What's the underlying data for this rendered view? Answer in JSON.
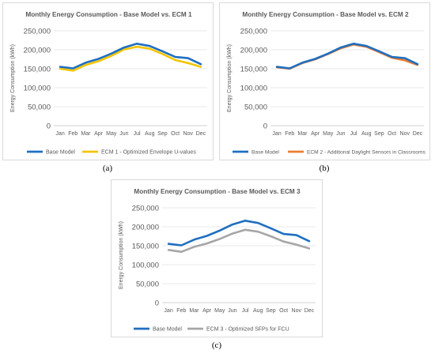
{
  "chart_data": [
    {
      "type": "line",
      "title": "Monthly Energy Consumption - Base Model vs. ECM 1",
      "xlabel": "",
      "ylabel": "Energy Consumption (kWh)",
      "ylim": [
        0,
        250000
      ],
      "yticks": [
        "0",
        "50,000",
        "100,000",
        "150,000",
        "200,000",
        "250,000"
      ],
      "categories": [
        "Jan",
        "Feb",
        "Mar",
        "Apr",
        "May",
        "Jun",
        "Jul",
        "Aug",
        "Sep",
        "Oct",
        "Nov",
        "Dec"
      ],
      "grid": true,
      "legend": "bottom",
      "series": [
        {
          "name": "Base Model",
          "color": "#1f6fc0",
          "values": [
            155000,
            151000,
            166000,
            176000,
            190000,
            206000,
            216000,
            210000,
            196000,
            181000,
            178000,
            162000
          ]
        },
        {
          "name": "ECM 1 - Optimized Envelope U-values",
          "color": "#f2c500",
          "values": [
            150000,
            145000,
            160000,
            170000,
            184000,
            201000,
            208000,
            203000,
            189000,
            173000,
            165000,
            155000
          ]
        }
      ]
    },
    {
      "type": "line",
      "title": "Monthly Energy Consumption - Base Model vs. ECM 2",
      "xlabel": "",
      "ylabel": "Energy Consumption (kWh)",
      "ylim": [
        0,
        250000
      ],
      "yticks": [
        "0",
        "50,000",
        "100,000",
        "150,000",
        "200,000",
        "250,000"
      ],
      "categories": [
        "Jan",
        "Feb",
        "Mar",
        "Apr",
        "May",
        "Jun",
        "Jul",
        "Aug",
        "Sep",
        "Oct",
        "Nov",
        "Dec"
      ],
      "grid": true,
      "legend": "bottom",
      "series": [
        {
          "name": "Base Model",
          "color": "#1f6fc0",
          "values": [
            155000,
            151000,
            166000,
            176000,
            190000,
            206000,
            216000,
            210000,
            196000,
            181000,
            178000,
            162000
          ]
        },
        {
          "name": "ECM 2 - Additional Daylight Sensors in Classrooms",
          "color": "#ed7d31",
          "values": [
            154000,
            150000,
            165000,
            175000,
            189000,
            204000,
            214000,
            208000,
            194000,
            179000,
            172000,
            160000
          ]
        }
      ]
    },
    {
      "type": "line",
      "title": "Monthly Energy Consumption - Base Model vs. ECM 3",
      "xlabel": "",
      "ylabel": "Energy Consumption (kWh)",
      "ylim": [
        0,
        250000
      ],
      "yticks": [
        "0",
        "50,000",
        "100,000",
        "150,000",
        "200,000",
        "250,000"
      ],
      "categories": [
        "Jan",
        "Feb",
        "Mar",
        "Apr",
        "May",
        "Jun",
        "Jul",
        "Aug",
        "Sep",
        "Oct",
        "Nov",
        "Dec"
      ],
      "grid": true,
      "legend": "bottom",
      "series": [
        {
          "name": "Base Model",
          "color": "#1f6fc0",
          "values": [
            155000,
            151000,
            166000,
            176000,
            190000,
            206000,
            216000,
            210000,
            196000,
            181000,
            178000,
            162000
          ]
        },
        {
          "name": "ECM 3 - Optimized SFPs for FCU",
          "color": "#a6a6a6",
          "values": [
            139000,
            134000,
            147000,
            156000,
            168000,
            182000,
            192000,
            187000,
            175000,
            161000,
            153000,
            143000
          ]
        }
      ]
    }
  ],
  "subfigures": [
    "(a)",
    "(b)",
    "(c)"
  ]
}
